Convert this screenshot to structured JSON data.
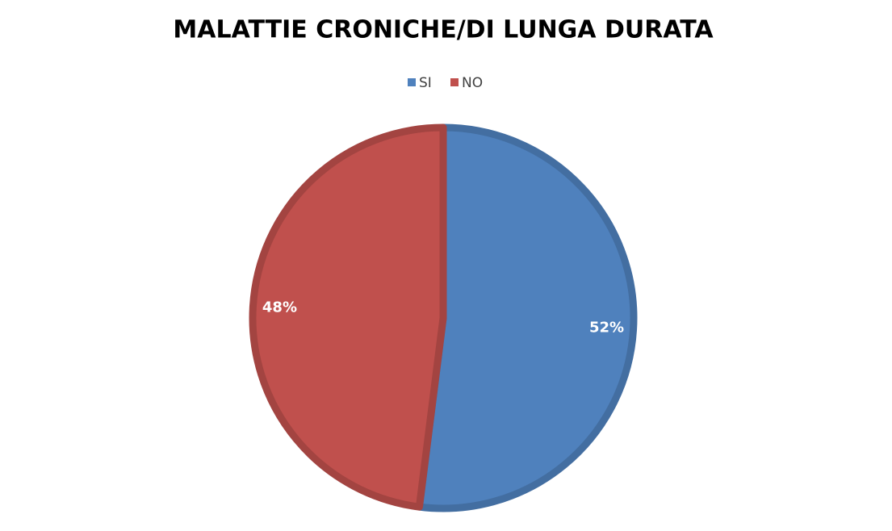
{
  "chart_data": {
    "type": "pie",
    "title": "MALATTIE CRONICHE/DI LUNGA DURATA",
    "categories": [
      "SI",
      "NO"
    ],
    "values": [
      52,
      48
    ],
    "value_labels": [
      "52%",
      "48%"
    ],
    "colors": [
      "#4f81bd",
      "#c0504d"
    ],
    "legend": "top"
  }
}
